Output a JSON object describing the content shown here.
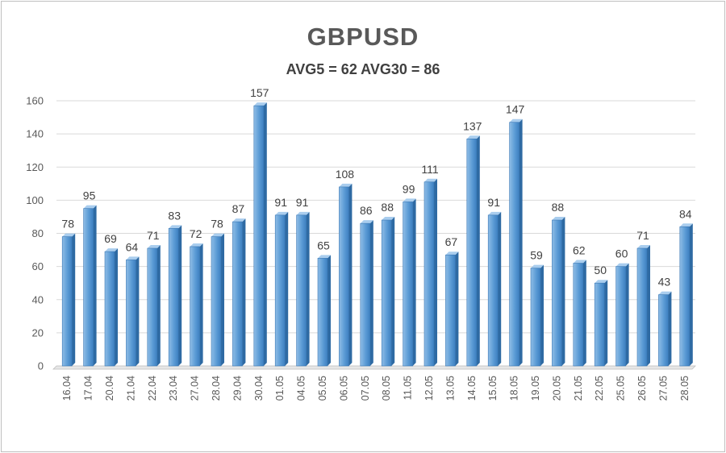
{
  "chart_data": {
    "type": "bar",
    "title": "GBPUSD",
    "subtitle": "AVG5 = 62 AVG30 = 86",
    "xlabel": "",
    "ylabel": "",
    "ylim": [
      0,
      160
    ],
    "yticks": [
      0,
      20,
      40,
      60,
      80,
      100,
      120,
      140,
      160
    ],
    "grid": true,
    "legend": "none",
    "bar_color": "#5b9bd5",
    "categories": [
      "16.04",
      "17.04",
      "20.04",
      "21.04",
      "22.04",
      "23.04",
      "27.04",
      "28.04",
      "29.04",
      "30.04",
      "01.05",
      "04.05",
      "05.05",
      "06.05",
      "07.05",
      "08.05",
      "11.05",
      "12.05",
      "13.05",
      "14.05",
      "15.05",
      "18.05",
      "19.05",
      "20.05",
      "21.05",
      "22.05",
      "25.05",
      "26.05",
      "27.05",
      "28.05"
    ],
    "values": [
      78,
      95,
      69,
      64,
      71,
      83,
      72,
      78,
      87,
      157,
      91,
      91,
      65,
      108,
      86,
      88,
      99,
      111,
      67,
      137,
      91,
      147,
      59,
      88,
      62,
      50,
      60,
      71,
      43,
      84
    ]
  }
}
